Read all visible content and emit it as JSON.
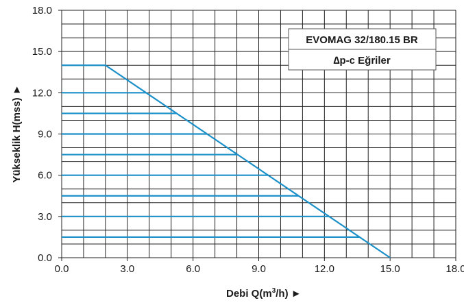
{
  "chart_data": {
    "type": "line",
    "title_box": {
      "line1": "EVOMAG 32/180.15 BR",
      "line2": "∆p-c Eğriler"
    },
    "xlabel": "Debi Q(m",
    "xlabel_sup": "3",
    "xlabel_tail": "/h) ►",
    "ylabel": "Yükseklik H(mss) ►",
    "xlim": [
      0,
      18
    ],
    "ylim": [
      0,
      18
    ],
    "x_ticks": [
      "0.0",
      "3.0",
      "6.0",
      "9.0",
      "12.0",
      "15.0",
      "18.0"
    ],
    "y_ticks": [
      "0.0",
      "3.0",
      "6.0",
      "9.0",
      "12.0",
      "15.0",
      "18.0"
    ],
    "x_tick_values": [
      0,
      3,
      6,
      9,
      12,
      15,
      18
    ],
    "y_tick_values": [
      0,
      3,
      6,
      9,
      12,
      15,
      18
    ],
    "grid": true,
    "grid_step": 1,
    "curve_color": "#1a8fc8",
    "series": [
      {
        "x": [
          0,
          2,
          15
        ],
        "y": [
          14,
          14,
          0
        ]
      },
      {
        "x": [
          0,
          3.86
        ],
        "y": [
          12,
          12
        ]
      },
      {
        "x": [
          0,
          5.25
        ],
        "y": [
          10.5,
          10.5
        ]
      },
      {
        "x": [
          0,
          6.64
        ],
        "y": [
          9,
          9
        ]
      },
      {
        "x": [
          0,
          8.04
        ],
        "y": [
          7.5,
          7.5
        ]
      },
      {
        "x": [
          0,
          9.43
        ],
        "y": [
          6,
          6
        ]
      },
      {
        "x": [
          0,
          10.82
        ],
        "y": [
          4.5,
          4.5
        ]
      },
      {
        "x": [
          0,
          12.21
        ],
        "y": [
          3,
          3
        ]
      },
      {
        "x": [
          0,
          13.61
        ],
        "y": [
          1.5,
          1.5
        ]
      }
    ]
  }
}
